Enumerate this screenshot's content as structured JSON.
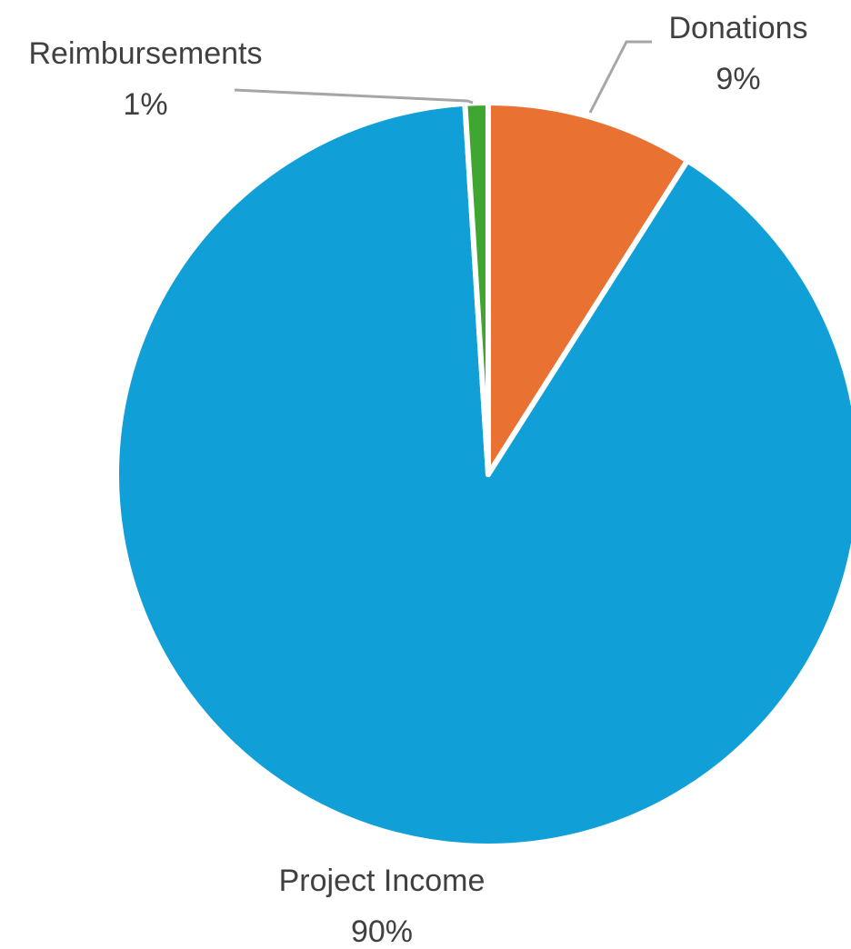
{
  "chart_data": {
    "type": "pie",
    "categories": [
      "Donations",
      "Project Income",
      "Reimbursements"
    ],
    "values": [
      9,
      90,
      1
    ],
    "labels": [
      "9%",
      "90%",
      "1%"
    ],
    "colors": [
      "#E97132",
      "#119FD7",
      "#3FA631"
    ],
    "start_angle_deg": 0,
    "direction": "clockwise",
    "legend": "none",
    "data_labels": "outside with category name and percent"
  }
}
